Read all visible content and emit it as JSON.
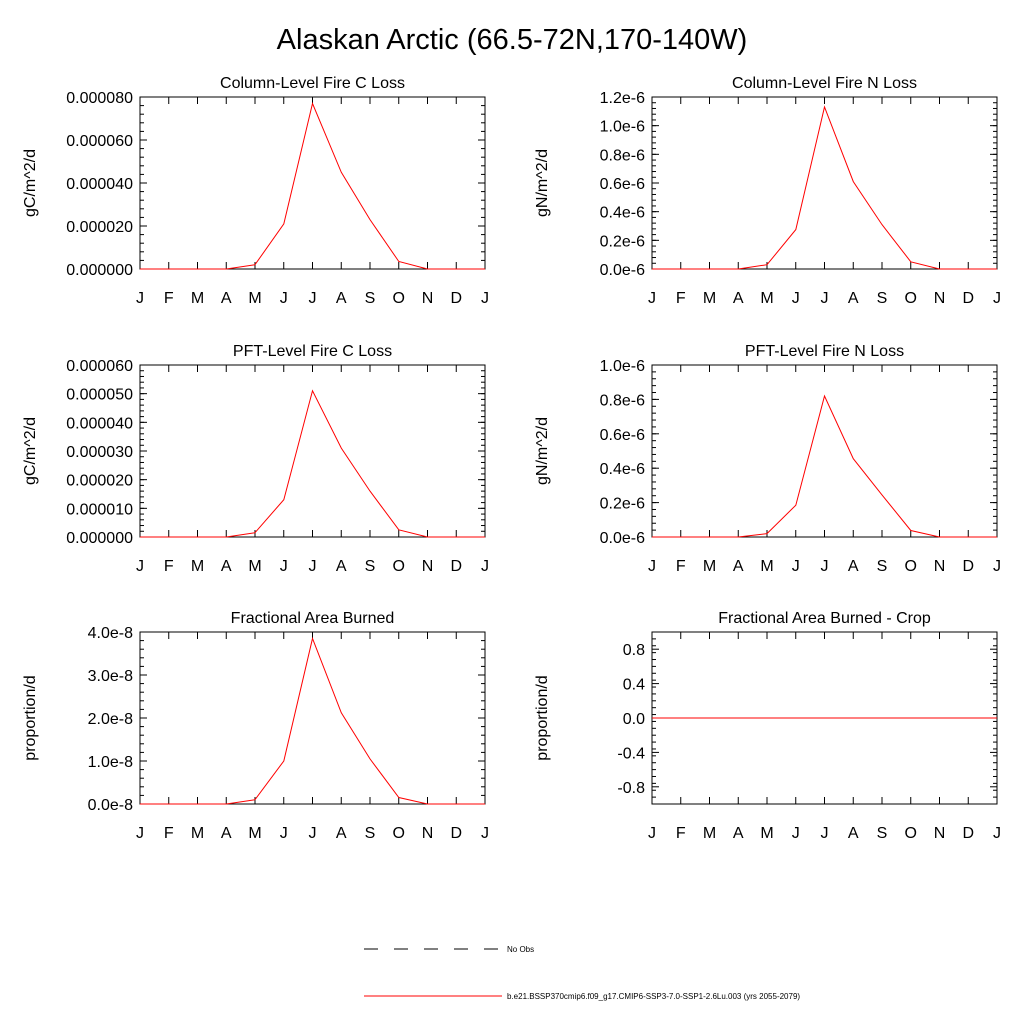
{
  "figure": {
    "title": "Alaskan Arctic (66.5-72N,170-140W)",
    "legend": [
      {
        "label": "No Obs",
        "style": "dashed",
        "color": "#000000"
      },
      {
        "label": "b.e21.BSSP370cmip6.f09_g17.CMIP6-SSP3-7.0-SSP1-2.6Lu.003 (yrs 2055-2079)",
        "style": "solid",
        "color": "#ff0000"
      }
    ],
    "line_color": "#ff0000"
  },
  "chart_data": [
    {
      "type": "line",
      "title": "Column-Level Fire C Loss",
      "ylabel": "gC/m^2/d",
      "xlabel": "",
      "categories": [
        "J",
        "F",
        "M",
        "A",
        "M",
        "J",
        "J",
        "A",
        "S",
        "O",
        "N",
        "D",
        "J"
      ],
      "ylim": [
        0,
        8e-05
      ],
      "yticks": [
        0,
        2e-05,
        4e-05,
        6e-05,
        8e-05
      ],
      "ytick_labels": [
        "0.000000",
        "0.000020",
        "0.000040",
        "0.000060",
        "0.000080"
      ],
      "series": [
        {
          "values": [
            0,
            0,
            0,
            0,
            2e-06,
            2.1e-05,
            7.7e-05,
            4.5e-05,
            2.3e-05,
            3.5e-06,
            0,
            0,
            0
          ]
        }
      ]
    },
    {
      "type": "line",
      "title": "Column-Level Fire N Loss",
      "ylabel": "gN/m^2/d",
      "xlabel": "",
      "categories": [
        "J",
        "F",
        "M",
        "A",
        "M",
        "J",
        "J",
        "A",
        "S",
        "O",
        "N",
        "D",
        "J"
      ],
      "ylim": [
        0,
        1.2e-06
      ],
      "yticks": [
        0,
        2e-07,
        4e-07,
        6e-07,
        8e-07,
        1e-06,
        1.2e-06
      ],
      "ytick_labels": [
        "0.0e-6",
        "0.2e-6",
        "0.4e-6",
        "0.6e-6",
        "0.8e-6",
        "1.0e-6",
        "1.2e-6"
      ],
      "series": [
        {
          "values": [
            0,
            0,
            0,
            0,
            3e-08,
            2.75e-07,
            1.13e-06,
            6.1e-07,
            3.1e-07,
            5e-08,
            0,
            0,
            0
          ]
        }
      ]
    },
    {
      "type": "line",
      "title": "PFT-Level Fire C Loss",
      "ylabel": "gC/m^2/d",
      "xlabel": "",
      "categories": [
        "J",
        "F",
        "M",
        "A",
        "M",
        "J",
        "J",
        "A",
        "S",
        "O",
        "N",
        "D",
        "J"
      ],
      "ylim": [
        0,
        6e-05
      ],
      "yticks": [
        0,
        1e-05,
        2e-05,
        3e-05,
        4e-05,
        5e-05,
        6e-05
      ],
      "ytick_labels": [
        "0.000000",
        "0.000010",
        "0.000020",
        "0.000030",
        "0.000040",
        "0.000050",
        "0.000060"
      ],
      "series": [
        {
          "values": [
            0,
            0,
            0,
            0,
            1.5e-06,
            1.3e-05,
            5.1e-05,
            3.1e-05,
            1.6e-05,
            2.5e-06,
            0,
            0,
            0
          ]
        }
      ]
    },
    {
      "type": "line",
      "title": "PFT-Level Fire N Loss",
      "ylabel": "gN/m^2/d",
      "xlabel": "",
      "categories": [
        "J",
        "F",
        "M",
        "A",
        "M",
        "J",
        "J",
        "A",
        "S",
        "O",
        "N",
        "D",
        "J"
      ],
      "ylim": [
        0,
        1e-06
      ],
      "yticks": [
        0,
        2e-07,
        4e-07,
        6e-07,
        8e-07,
        1e-06
      ],
      "ytick_labels": [
        "0.0e-6",
        "0.2e-6",
        "0.4e-6",
        "0.6e-6",
        "0.8e-6",
        "1.0e-6"
      ],
      "series": [
        {
          "values": [
            0,
            0,
            0,
            0,
            2e-08,
            1.85e-07,
            8.2e-07,
            4.55e-07,
            2.45e-07,
            3.8e-08,
            0,
            0,
            0
          ]
        }
      ]
    },
    {
      "type": "line",
      "title": "Fractional Area Burned",
      "ylabel": "proportion/d",
      "xlabel": "",
      "categories": [
        "J",
        "F",
        "M",
        "A",
        "M",
        "J",
        "J",
        "A",
        "S",
        "O",
        "N",
        "D",
        "J"
      ],
      "ylim": [
        0,
        4e-08
      ],
      "yticks": [
        0,
        1e-08,
        2e-08,
        3e-08,
        4e-08
      ],
      "ytick_labels": [
        "0.0e-8",
        "1.0e-8",
        "2.0e-8",
        "3.0e-8",
        "4.0e-8"
      ],
      "series": [
        {
          "values": [
            0,
            0,
            0,
            0,
            1e-09,
            1e-08,
            3.85e-08,
            2.12e-08,
            1.05e-08,
            1.5e-09,
            0,
            0,
            0
          ]
        }
      ]
    },
    {
      "type": "line",
      "title": "Fractional Area Burned - Crop",
      "ylabel": "proportion/d",
      "xlabel": "",
      "categories": [
        "J",
        "F",
        "M",
        "A",
        "M",
        "J",
        "J",
        "A",
        "S",
        "O",
        "N",
        "D",
        "J"
      ],
      "ylim": [
        -1,
        1
      ],
      "yticks": [
        -0.8,
        -0.4,
        0,
        0.4,
        0.8
      ],
      "ytick_labels": [
        "-0.8",
        "-0.4",
        "0.0",
        "0.4",
        "0.8"
      ],
      "series": [
        {
          "values": [
            0,
            0,
            0,
            0,
            0,
            0,
            0,
            0,
            0,
            0,
            0,
            0,
            0
          ]
        }
      ]
    }
  ]
}
